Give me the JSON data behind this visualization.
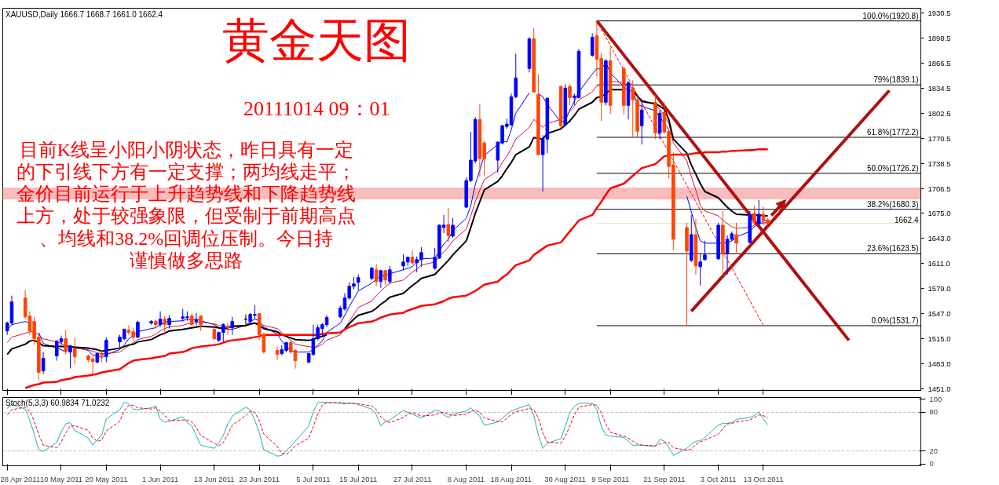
{
  "chart_data": [
    {
      "type": "candlestick",
      "title": "黄金天图",
      "subtitle": "20111014 09：01",
      "annotations": [
        "XAUUSD,Daily  1666.7 1668.7 1661.0 1662.4",
        "目前K线呈小阳小阴状态，昨日具有一定的下引线下方有一定支撑；两均线走平；金价目前运行于上升趋势线和下降趋势线上方，处于较强象限，但受制于前期高点、均线和38.2%回调位压制。今日持谨慎做多思路"
      ],
      "x": [
        "2011-04-28",
        "2011-04-29",
        "2011-05-02",
        "2011-05-03",
        "2011-05-04",
        "2011-05-05",
        "2011-05-06",
        "2011-05-09",
        "2011-05-10",
        "2011-05-11",
        "2011-05-12",
        "2011-05-13",
        "2011-05-16",
        "2011-05-17",
        "2011-05-18",
        "2011-05-19",
        "2011-05-20",
        "2011-05-23",
        "2011-05-24",
        "2011-05-25",
        "2011-05-26",
        "2011-05-27",
        "2011-05-30",
        "2011-05-31",
        "2011-06-01",
        "2011-06-02",
        "2011-06-03",
        "2011-06-06",
        "2011-06-07",
        "2011-06-08",
        "2011-06-09",
        "2011-06-10",
        "2011-06-13",
        "2011-06-14",
        "2011-06-15",
        "2011-06-16",
        "2011-06-17",
        "2011-06-20",
        "2011-06-21",
        "2011-06-22",
        "2011-06-23",
        "2011-06-24",
        "2011-06-27",
        "2011-06-28",
        "2011-06-29",
        "2011-06-30",
        "2011-07-01",
        "2011-07-04",
        "2011-07-05",
        "2011-07-06",
        "2011-07-07",
        "2011-07-08",
        "2011-07-11",
        "2011-07-12",
        "2011-07-13",
        "2011-07-14",
        "2011-07-15",
        "2011-07-18",
        "2011-07-19",
        "2011-07-20",
        "2011-07-21",
        "2011-07-22",
        "2011-07-25",
        "2011-07-26",
        "2011-07-27",
        "2011-07-28",
        "2011-07-29",
        "2011-08-01",
        "2011-08-02",
        "2011-08-03",
        "2011-08-04",
        "2011-08-05",
        "2011-08-08",
        "2011-08-09",
        "2011-08-10",
        "2011-08-11",
        "2011-08-12",
        "2011-08-15",
        "2011-08-16",
        "2011-08-17",
        "2011-08-18",
        "2011-08-19",
        "2011-08-22",
        "2011-08-23",
        "2011-08-24",
        "2011-08-25",
        "2011-08-26",
        "2011-08-29",
        "2011-08-30",
        "2011-08-31",
        "2011-09-01",
        "2011-09-02",
        "2011-09-05",
        "2011-09-06",
        "2011-09-07",
        "2011-09-08",
        "2011-09-09",
        "2011-09-12",
        "2011-09-13",
        "2011-09-14",
        "2011-09-15",
        "2011-09-16",
        "2011-09-19",
        "2011-09-20",
        "2011-09-21",
        "2011-09-22",
        "2011-09-23",
        "2011-09-26",
        "2011-09-27",
        "2011-09-28",
        "2011-09-29",
        "2011-09-30",
        "2011-10-03",
        "2011-10-04",
        "2011-10-05",
        "2011-10-06",
        "2011-10-07",
        "2011-10-10",
        "2011-10-11",
        "2011-10-12",
        "2011-10-13",
        "2011-10-14"
      ],
      "ohlc": [
        [
          1525,
          1537,
          1520,
          1535
        ],
        [
          1535,
          1570,
          1533,
          1562
        ],
        [
          1567,
          1577,
          1540,
          1543
        ],
        [
          1544,
          1550,
          1520,
          1525
        ],
        [
          1537,
          1543,
          1507,
          1515
        ],
        [
          1517,
          1520,
          1462,
          1472
        ],
        [
          1474,
          1498,
          1470,
          1490
        ],
        [
          1493,
          1513,
          1487,
          1512
        ],
        [
          1511,
          1519,
          1507,
          1515
        ],
        [
          1515,
          1526,
          1495,
          1499
        ],
        [
          1498,
          1507,
          1477,
          1506
        ],
        [
          1502,
          1517,
          1482,
          1492
        ],
        [
          1493,
          1495,
          1485,
          1488
        ],
        [
          1489,
          1493,
          1470,
          1486
        ],
        [
          1485,
          1497,
          1484,
          1496
        ],
        [
          1496,
          1500,
          1485,
          1494
        ],
        [
          1492,
          1517,
          1485,
          1513
        ],
        [
          1511,
          1520,
          1503,
          1517
        ],
        [
          1515,
          1528,
          1513,
          1527
        ],
        [
          1526,
          1532,
          1520,
          1523
        ],
        [
          1524,
          1529,
          1513,
          1517
        ],
        [
          1517,
          1538,
          1516,
          1536
        ],
        [
          1535,
          1539,
          1533,
          1537
        ],
        [
          1537,
          1539,
          1530,
          1533
        ],
        [
          1533,
          1550,
          1530,
          1540
        ],
        [
          1540,
          1544,
          1520,
          1533
        ],
        [
          1533,
          1545,
          1528,
          1541
        ],
        [
          1541,
          1553,
          1537,
          1543
        ],
        [
          1542,
          1550,
          1538,
          1543
        ],
        [
          1544,
          1547,
          1532,
          1533
        ],
        [
          1537,
          1548,
          1532,
          1539
        ],
        [
          1544,
          1545,
          1525,
          1533
        ],
        [
          1527,
          1529,
          1513,
          1515
        ],
        [
          1513,
          1524,
          1511,
          1523
        ],
        [
          1523,
          1535,
          1511,
          1533
        ],
        [
          1531,
          1535,
          1520,
          1529
        ],
        [
          1529,
          1543,
          1520,
          1537
        ],
        [
          1540,
          1546,
          1533,
          1540
        ],
        [
          1537,
          1548,
          1535,
          1546
        ],
        [
          1545,
          1558,
          1540,
          1546
        ],
        [
          1547,
          1548,
          1513,
          1520
        ],
        [
          1520,
          1523,
          1496,
          1498
        ],
        [
          1500,
          1505,
          1488,
          1495
        ],
        [
          1496,
          1507,
          1494,
          1501
        ],
        [
          1500,
          1511,
          1498,
          1510
        ],
        [
          1510,
          1513,
          1496,
          1498
        ],
        [
          1500,
          1502,
          1477,
          1487
        ],
        [
          1485,
          1497,
          1484,
          1496
        ],
        [
          1495,
          1533,
          1493,
          1515
        ],
        [
          1515,
          1533,
          1513,
          1529
        ],
        [
          1528,
          1535,
          1518,
          1533
        ],
        [
          1533,
          1545,
          1530,
          1542
        ],
        [
          1543,
          1557,
          1541,
          1554
        ],
        [
          1553,
          1573,
          1551,
          1567
        ],
        [
          1567,
          1587,
          1565,
          1582
        ],
        [
          1582,
          1594,
          1578,
          1585
        ],
        [
          1587,
          1597,
          1577,
          1593
        ],
        [
          1592,
          1607,
          1590,
          1605
        ],
        [
          1603,
          1610,
          1582,
          1588
        ],
        [
          1588,
          1603,
          1580,
          1602
        ],
        [
          1602,
          1603,
          1583,
          1590
        ],
        [
          1588,
          1608,
          1585,
          1603
        ],
        [
          1608,
          1623,
          1603,
          1613
        ],
        [
          1613,
          1620,
          1608,
          1619
        ],
        [
          1619,
          1628,
          1610,
          1612
        ],
        [
          1612,
          1620,
          1600,
          1616
        ],
        [
          1616,
          1632,
          1607,
          1625
        ],
        [
          1605,
          1631,
          1603,
          1619
        ],
        [
          1618,
          1661,
          1617,
          1660
        ],
        [
          1657,
          1673,
          1650,
          1660
        ],
        [
          1661,
          1682,
          1638,
          1647
        ],
        [
          1646,
          1669,
          1644,
          1660
        ],
        [
          1683,
          1721,
          1682,
          1717
        ],
        [
          1717,
          1779,
          1715,
          1743
        ],
        [
          1742,
          1798,
          1739,
          1795
        ],
        [
          1795,
          1815,
          1722,
          1745
        ],
        [
          1765,
          1768,
          1723,
          1745
        ],
        [
          1743,
          1767,
          1727,
          1766
        ],
        [
          1765,
          1788,
          1763,
          1787
        ],
        [
          1786,
          1796,
          1783,
          1789
        ],
        [
          1788,
          1828,
          1787,
          1824
        ],
        [
          1824,
          1879,
          1822,
          1848
        ],
        [
          1860,
          1900,
          1855,
          1898
        ],
        [
          1898,
          1912,
          1830,
          1830
        ],
        [
          1827,
          1853,
          1750,
          1750
        ],
        [
          1750,
          1775,
          1703,
          1770
        ],
        [
          1770,
          1823,
          1752,
          1822
        ],
        [
          1837,
          1839,
          1783,
          1787
        ],
        [
          1788,
          1840,
          1787,
          1835
        ],
        [
          1837,
          1840,
          1813,
          1823
        ],
        [
          1823,
          1828,
          1813,
          1825
        ],
        [
          1823,
          1885,
          1822,
          1882
        ],
        [
          1877,
          1905,
          1875,
          1900
        ],
        [
          1902,
          1920.8,
          1850,
          1872
        ],
        [
          1873,
          1880,
          1793,
          1817
        ],
        [
          1817,
          1872,
          1813,
          1870
        ],
        [
          1870,
          1887,
          1802,
          1813
        ],
        [
          1860,
          1863,
          1801,
          1813
        ],
        [
          1813,
          1844,
          1795,
          1842
        ],
        [
          1835,
          1845,
          1773,
          1820
        ],
        [
          1820,
          1822,
          1773,
          1780
        ],
        [
          1787,
          1820,
          1763,
          1807
        ],
        [
          1817,
          1826,
          1770,
          1778
        ],
        [
          1778,
          1807,
          1770,
          1803
        ],
        [
          1804,
          1817,
          1777,
          1779
        ],
        [
          1780,
          1782,
          1720,
          1735
        ],
        [
          1737,
          1753,
          1628,
          1642
        ],
        [
          1657,
          1663,
          1531.7,
          1627
        ],
        [
          1615,
          1673,
          1613,
          1648
        ],
        [
          1648,
          1668,
          1597,
          1608
        ],
        [
          1607,
          1623,
          1583,
          1613
        ],
        [
          1616,
          1640,
          1615,
          1622
        ],
        [
          1617,
          1663,
          1616,
          1660
        ],
        [
          1660,
          1678,
          1595,
          1623
        ],
        [
          1624,
          1647,
          1597,
          1642
        ],
        [
          1642,
          1652,
          1640,
          1649
        ],
        [
          1648,
          1663,
          1625,
          1637
        ],
        [
          1638,
          1678,
          1637,
          1673
        ],
        [
          1675,
          1685,
          1660,
          1663
        ],
        [
          1662,
          1692,
          1660,
          1674
        ],
        [
          1674,
          1684,
          1660,
          1666
        ],
        [
          1666.7,
          1668.7,
          1661.0,
          1662.4
        ]
      ],
      "colors": [
        "#0000ff",
        "#0000ff",
        "#ff4500",
        "#ff4500",
        "#ff4500",
        "#ff4500",
        "#0000ff",
        "#0000ff",
        "#0000ff",
        "#ff4500",
        "#0000ff",
        "#ff4500",
        "#ff4500",
        "#ff4500",
        "#0000ff",
        "#ff4500",
        "#0000ff",
        "#0000ff",
        "#0000ff",
        "#ff4500",
        "#ff4500",
        "#0000ff",
        "#0000ff",
        "#ff4500",
        "#0000ff",
        "#ff4500",
        "#0000ff",
        "#0000ff",
        "#0000ff",
        "#ff4500",
        "#0000ff",
        "#ff4500",
        "#ff4500",
        "#0000ff",
        "#0000ff",
        "#ff4500",
        "#0000ff",
        "#000000",
        "#0000ff",
        "#0000ff",
        "#ff4500",
        "#ff4500",
        "#ff4500",
        "#0000ff",
        "#0000ff",
        "#ff4500",
        "#ff4500",
        "#0000ff",
        "#0000ff",
        "#0000ff",
        "#0000ff",
        "#0000ff",
        "#0000ff",
        "#0000ff",
        "#0000ff",
        "#0000ff",
        "#0000ff",
        "#0000ff",
        "#ff4500",
        "#0000ff",
        "#ff4500",
        "#0000ff",
        "#0000ff",
        "#0000ff",
        "#ff4500",
        "#0000ff",
        "#0000ff",
        "#0000ff",
        "#0000ff",
        "#0000ff",
        "#ff4500",
        "#0000ff",
        "#0000ff",
        "#0000ff",
        "#0000ff",
        "#ff4500",
        "#ff4500",
        "#0000ff",
        "#0000ff",
        "#0000ff",
        "#0000ff",
        "#0000ff",
        "#0000ff",
        "#ff4500",
        "#ff4500",
        "#0000ff",
        "#0000ff",
        "#ff4500",
        "#0000ff",
        "#ff4500",
        "#0000ff",
        "#0000ff",
        "#0000ff",
        "#ff4500",
        "#ff4500",
        "#0000ff",
        "#ff4500",
        "#ff4500",
        "#0000ff",
        "#ff4500",
        "#ff4500",
        "#0000ff",
        "#ff4500",
        "#0000ff",
        "#ff4500",
        "#ff4500",
        "#ff4500",
        "#ff4500",
        "#0000ff",
        "#ff4500",
        "#0000ff",
        "#0000ff",
        "#0000ff",
        "#ff4500",
        "#0000ff",
        "#0000ff",
        "#ff4500",
        "#0000ff",
        "#ff4500",
        "#0000ff",
        "#ff4500",
        "#ff4500"
      ],
      "series": [
        {
          "type": "line",
          "color": "#0000ff",
          "values": [
            1527,
            1533,
            1537,
            1535,
            null,
            1523,
            1509,
            1503,
            1501,
            1498,
            1504,
            1505,
            1500,
            1494,
            1494,
            1491,
            1495,
            1501,
            1507,
            1515,
            1519,
            1524,
            1528,
            1529,
            1533,
            1536,
            1537,
            1538,
            1540,
            1539,
            1540,
            1538,
            1533,
            1529,
            1529,
            1527,
            1527,
            1532,
            1537,
            1540,
            1538,
            1530,
            1521,
            1512,
            1505,
            1500,
            1498,
            1498,
            1501,
            1507,
            1512,
            1523,
            1535,
            1545,
            1556,
            1566,
            1576,
            1586,
            1591,
            1595,
            1596,
            1598,
            1603,
            1605,
            1607,
            1613,
            1617,
            1618,
            1627,
            1636,
            1642,
            1653,
            1669,
            1685,
            1712,
            1730,
            1749,
            1763,
            1768,
            1766,
            1782,
            1803,
            1829,
            null,
            1828,
            1824,
            1814,
            1792,
            1793,
            1807,
            1818,
            1830,
            1853,
            1860,
            1859,
            1868,
            1854,
            1837,
            1831,
            1832,
            1814,
            1812,
            1806,
            1798,
            1790,
            1782,
            null,
            1697,
            1677,
            1657,
            1640,
            1637,
            1637,
            1637,
            1638,
            1640,
            1645,
            1652,
            1658,
            1661,
            1663,
            1663
          ]
        },
        {
          "type": "line",
          "color": "#dc143c",
          "values": [
            1510,
            1517,
            1522,
            1524,
            1524,
            1520,
            1515,
            1511,
            1509,
            1506,
            1505,
            1503,
            1501,
            1499,
            1497,
            1496,
            1496,
            1498,
            1502,
            1506,
            1510,
            1514,
            1518,
            1521,
            1525,
            1528,
            1530,
            1532,
            1534,
            1535,
            1536,
            1536,
            1534,
            1532,
            1531,
            1530,
            1530,
            1531,
            1533,
            1535,
            1535,
            1532,
            1528,
            1523,
            1518,
            1513,
            1508,
            1505,
            1504,
            1505,
            1508,
            1513,
            1520,
            1528,
            1537,
            1546,
            1555,
            1563,
            1570,
            1576,
            1581,
            1586,
            1590,
            1595,
            1600,
            1604,
            1609,
            1613,
            1620,
            1626,
            1632,
            1640,
            1655,
            1672,
            1690,
            1705,
            1718,
            1730,
            1740,
            1748,
            1758,
            1770,
            1785,
            1795,
            1790,
            1785,
            1790,
            1795,
            1800,
            1805,
            1812,
            1820,
            1830,
            1838,
            1840,
            1843,
            1844,
            1842,
            1838,
            1835,
            1826,
            1820,
            1814,
            1808,
            1800,
            1790,
            1765,
            1742,
            1722,
            1705,
            1685,
            1678,
            1672,
            1666,
            1662,
            1658,
            1656,
            1657,
            1660,
            1663,
            1665,
            1667
          ]
        },
        {
          "type": "line",
          "color": "#000000",
          "values": [
            1495,
            1502,
            1508,
            1512,
            1513,
            1510,
            1506,
            1505,
            1505,
            1505,
            1505,
            1504,
            1503,
            1502,
            1501,
            1499,
            1500,
            1503,
            1505,
            1507,
            1508,
            1511,
            1514,
            1517,
            1520,
            1522,
            1525,
            1527,
            1528,
            1529,
            1530,
            1531,
            1530,
            1529,
            1528,
            1529,
            1531,
            1532,
            1534,
            1535,
            1532,
            1528,
            1524,
            1520,
            1518,
            1516,
            1514,
            1513,
            1514,
            1517,
            1518,
            1520,
            null,
            1528,
            1534,
            1540,
            1545,
            1550,
            1554,
            1559,
            1563,
            1568,
            1573,
            1578,
            1583,
            1587,
            1592,
            1597,
            1603,
            1609,
            1615,
            1622,
            1640,
            1657,
            1675,
            1690,
            1705,
            1716,
            1723,
            1732,
            1740,
            1750,
            1760,
            1772,
            1771,
            1770,
            1777,
            1783,
            1788,
            1793,
            1800,
            1808,
            1817,
            1823,
            1824,
            1828,
            1833,
            1833,
            null,
            1831,
            1825,
            1818,
            1815,
            1812,
            1808,
            1795,
            1770,
            1752,
            1737,
            1725,
            1713,
            1703,
            1695,
            1689,
            1683,
            1678,
            1674,
            1673,
            1673,
            1673,
            1672,
            1672
          ]
        },
        {
          "type": "line",
          "color": "#ff0000",
          "values": [
            null,
            null,
            1452,
            1454,
            1456,
            1457,
            1459,
            1460,
            1462,
            1463,
            1464,
            1466,
            1468,
            1469,
            1470,
            1472,
            1473,
            1476,
            1480,
            1484,
            1487,
            1488,
            1490,
            1491,
            1492,
            1493,
            1496,
            1498,
            1500,
            1503,
            1504,
            1505,
            1507,
            1508,
            1510,
            1512,
            1513,
            1515,
            1516,
            1517,
            1518,
            1520,
            1520,
            1520,
            1520,
            1520,
            1520,
            1520,
            1520,
            1520,
            1521,
            1522,
            1523,
            1527,
            1530,
            1532,
            1535,
            1537,
            1539,
            1542,
            1544,
            1546,
            1548,
            1551,
            1553,
            1555,
            1557,
            1559,
            1561,
            1563,
            1566,
            1568,
            1570,
            1573,
            1576,
            1580,
            1584,
            1588,
            1593,
            1597,
            1603,
            1609,
            1615,
            1622,
            1626,
            1630,
            1634,
            1638,
            1645,
            1652,
            1659,
            1666,
            1673,
            1682,
            1690,
            1699,
            1707,
            1713,
            1718,
            1723,
            1728,
            1733,
            1738,
            1743,
            1748,
            1749,
            1750,
            1750,
            1751,
            1752,
            1752,
            1753,
            1753,
            1754,
            1754,
            1755,
            1755,
            1756,
            1756,
            1757,
            1757,
            1757
          ]
        },
        {
          "type": "line",
          "color": "#b01010",
          "x": [
            "2011-09-06",
            "2011-11-01"
          ],
          "values": [
            1921,
            1513
          ]
        },
        {
          "type": "line",
          "color": "#b01010",
          "x": [
            "2011-09-27",
            "2011-11-10"
          ],
          "values": [
            1550,
            1832
          ]
        },
        {
          "type": "line",
          "color": "#ff0000",
          "line_style": "dashed",
          "x": [
            "2011-09-06",
            "2011-10-13"
          ],
          "values": [
            1921,
            1532
          ]
        }
      ],
      "ref_lines": [
        {
          "axis": "y",
          "value": 1920.8,
          "label": "100.0%(1920.8)",
          "color": "#000000"
        },
        {
          "axis": "y",
          "value": 1839.1,
          "label": "79%(1839.1)",
          "color": "#000000"
        },
        {
          "axis": "y",
          "value": 1772.2,
          "label": "61.8%(1772.2)",
          "color": "#000000"
        },
        {
          "axis": "y",
          "value": 1726.2,
          "label": "50.0%(1726.2)",
          "color": "#000000"
        },
        {
          "axis": "y",
          "value": 1680.3,
          "label": "38.2%(1680.3)",
          "color": "#000000"
        },
        {
          "axis": "y",
          "value": 1623.5,
          "label": "23.6%(1623.5)",
          "color": "#000000"
        },
        {
          "axis": "y",
          "value": 1531.7,
          "label": "0.0%(1531.7)",
          "color": "#000000"
        },
        {
          "axis": "y",
          "value": 1662.4,
          "label": "1662.4",
          "color": "#e6e6c0"
        }
      ],
      "bands": [
        {
          "axis": "y",
          "from": 1693,
          "to": 1708,
          "color": "#f8bcbc"
        }
      ],
      "ylim": [
        1449,
        1937
      ],
      "yticks": [
        1930.5,
        1898.5,
        1866.5,
        1834.5,
        1802.5,
        1770.5,
        1738.5,
        1706.5,
        {
          "value": 1675,
          "label": "1675.0"
        },
        {
          "value": 1643,
          "label": "1643.0"
        },
        {
          "value": 1611,
          "label": "1611.0"
        },
        {
          "value": 1579,
          "label": "1579.0"
        },
        {
          "value": 1547,
          "label": "1547.0"
        },
        {
          "value": 1515,
          "label": "1515.0"
        },
        {
          "value": 1483,
          "label": "1483.0"
        },
        {
          "value": 1451,
          "label": "1451.0"
        }
      ],
      "xlim": [
        "2011-04-27",
        "2011-11-17"
      ],
      "xticks": [
        {
          "value": "2011-04-28",
          "label": null
        },
        {
          "value": "2011-05-10",
          "label": null
        },
        {
          "value": "2011-05-20",
          "label": null
        },
        {
          "value": "2011-06-01",
          "label": null
        },
        {
          "value": "2011-06-13",
          "label": null
        },
        {
          "value": "2011-06-23",
          "label": null
        },
        {
          "value": "2011-07-05",
          "label": null
        },
        {
          "value": "2011-07-15",
          "label": null
        },
        {
          "value": "2011-07-27",
          "label": null
        },
        {
          "value": "2011-08-08",
          "label": null
        },
        {
          "value": "2011-08-18",
          "label": null
        },
        {
          "value": "2011-08-30",
          "label": null
        },
        {
          "value": "2011-09-09",
          "label": null
        },
        {
          "value": "2011-09-21",
          "label": null
        },
        {
          "value": "2011-10-03",
          "label": null
        },
        {
          "value": "2011-10-13",
          "label": null
        }
      ],
      "tick_labels": "y",
      "grid": false
    },
    {
      "type": "line",
      "title": "Stoch(5,3,3) 60.9834 71.0232",
      "x": [
        "2011-04-28",
        "2011-04-29",
        "2011-05-02",
        "2011-05-03",
        "2011-05-04",
        "2011-05-05",
        "2011-05-06",
        "2011-05-09",
        "2011-05-10",
        "2011-05-11",
        "2011-05-12",
        "2011-05-13",
        "2011-05-16",
        "2011-05-17",
        "2011-05-18",
        "2011-05-19",
        "2011-05-20",
        "2011-05-23",
        "2011-05-24",
        "2011-05-25",
        "2011-05-26",
        "2011-05-27",
        "2011-05-30",
        "2011-05-31",
        "2011-06-01",
        "2011-06-02",
        "2011-06-03",
        "2011-06-06",
        "2011-06-07",
        "2011-06-08",
        "2011-06-09",
        "2011-06-10",
        "2011-06-13",
        "2011-06-14",
        "2011-06-15",
        "2011-06-16",
        "2011-06-17",
        "2011-06-20",
        "2011-06-21",
        "2011-06-22",
        "2011-06-23",
        "2011-06-24",
        "2011-06-27",
        "2011-06-28",
        "2011-06-29",
        "2011-06-30",
        "2011-07-01",
        "2011-07-04",
        "2011-07-05",
        "2011-07-06",
        "2011-07-07",
        "2011-07-08",
        "2011-07-11",
        "2011-07-12",
        "2011-07-13",
        "2011-07-14",
        "2011-07-15",
        "2011-07-18",
        "2011-07-19",
        "2011-07-20",
        "2011-07-21",
        "2011-07-22",
        "2011-07-25",
        "2011-07-26",
        "2011-07-27",
        "2011-07-28",
        "2011-07-29",
        "2011-08-01",
        "2011-08-02",
        "2011-08-03",
        "2011-08-04",
        "2011-08-05",
        "2011-08-08",
        "2011-08-09",
        "2011-08-10",
        "2011-08-11",
        "2011-08-12",
        "2011-08-15",
        "2011-08-16",
        "2011-08-17",
        "2011-08-18",
        "2011-08-19",
        "2011-08-22",
        "2011-08-23",
        "2011-08-24",
        "2011-08-25",
        "2011-08-26",
        "2011-08-29",
        "2011-08-30",
        "2011-08-31",
        "2011-09-01",
        "2011-09-02",
        "2011-09-05",
        "2011-09-06",
        "2011-09-07",
        "2011-09-08",
        "2011-09-09",
        "2011-09-12",
        "2011-09-13",
        "2011-09-14",
        "2011-09-15",
        "2011-09-16",
        "2011-09-19",
        "2011-09-20",
        "2011-09-21",
        "2011-09-22",
        "2011-09-23",
        "2011-09-26",
        "2011-09-27",
        "2011-09-28",
        "2011-09-29",
        "2011-09-30",
        "2011-10-03",
        "2011-10-04",
        "2011-10-05",
        "2011-10-06",
        "2011-10-07",
        "2011-10-10",
        "2011-10-11",
        "2011-10-12",
        "2011-10-13",
        "2011-10-14"
      ],
      "series": [
        {
          "color": "#20b2aa",
          "values": [
            86,
            92,
            85,
            68,
            46,
            22,
            19,
            33,
            50,
            62,
            64,
            52,
            40,
            29,
            37,
            45,
            70,
            84,
            96,
            93,
            85,
            84,
            87,
            90,
            69,
            65,
            66,
            73,
            64,
            59,
            44,
            29,
            24,
            32,
            44,
            62,
            74,
            88,
            84,
            68,
            48,
            22,
            12,
            13,
            21,
            27,
            35,
            59,
            81,
            95,
            96,
            95,
            94,
            93,
            94,
            94,
            92,
            85,
            76,
            59,
            65,
            68,
            83,
            80,
            77,
            74,
            71,
            83,
            82,
            76,
            72,
            77,
            82,
            87,
            80,
            74,
            60,
            65,
            71,
            77,
            82,
            85,
            92,
            75,
            45,
            24,
            32,
            39,
            58,
            80,
            89,
            94,
            94,
            84,
            58,
            45,
            43,
            41,
            35,
            29,
            29,
            29,
            27,
            38,
            35,
            26,
            13,
            24,
            31,
            35,
            36,
            41,
            60,
            63,
            63,
            64,
            69,
            72,
            75,
            81,
            70,
            61
          ]
        },
        {
          "color": "#ff0000",
          "line_style": "dashed",
          "values": [
            76,
            84,
            88,
            82,
            66,
            45,
            29,
            25,
            34,
            48,
            59,
            59,
            52,
            40,
            35,
            37,
            51,
            66,
            83,
            91,
            91,
            87,
            85,
            87,
            82,
            75,
            67,
            68,
            68,
            65,
            56,
            44,
            32,
            28,
            33,
            46,
            60,
            75,
            82,
            80,
            67,
            46,
            27,
            16,
            15,
            20,
            28,
            40,
            58,
            78,
            91,
            95,
            95,
            94,
            94,
            94,
            93,
            90,
            84,
            73,
            67,
            64,
            72,
            77,
            80,
            77,
            74,
            76,
            79,
            80,
            77,
            75,
            77,
            82,
            83,
            80,
            71,
            66,
            65,
            71,
            77,
            81,
            86,
            84,
            71,
            48,
            34,
            32,
            43,
            59,
            76,
            88,
            92,
            91,
            79,
            62,
            49,
            43,
            40,
            35,
            31,
            29,
            28,
            31,
            33,
            33,
            25,
            21,
            23,
            30,
            34,
            37,
            46,
            55,
            62,
            63,
            65,
            68,
            72,
            76,
            75,
            71
          ]
        }
      ],
      "ref_lines": [
        {
          "axis": "y",
          "value": 80,
          "color": "#c0c0c0",
          "line_style": "dashed"
        },
        {
          "axis": "y",
          "value": 20,
          "color": "#c0c0c0",
          "line_style": "dashed"
        }
      ],
      "ylim": [
        -3,
        103
      ],
      "yticks": [
        0,
        20,
        80,
        100
      ],
      "xlim": [
        "2011-04-27",
        "2011-11-17"
      ],
      "xticks": [
        {
          "value": "2011-04-28",
          "label": "28 Apr 2011"
        },
        {
          "value": "2011-05-10",
          "label": "10 May 2011"
        },
        {
          "value": "2011-05-20",
          "label": "20 May 2011"
        },
        {
          "value": "2011-06-01",
          "label": "1 Jun 2011"
        },
        {
          "value": "2011-06-13",
          "label": "13 Jun 2011"
        },
        {
          "value": "2011-06-23",
          "label": "23 Jun 2011"
        },
        {
          "value": "2011-07-05",
          "label": "5 Jul 2011"
        },
        {
          "value": "2011-07-15",
          "label": "15 Jul 2011"
        },
        {
          "value": "2011-07-27",
          "label": "27 Jul 2011"
        },
        {
          "value": "2011-08-08",
          "label": "8 Aug 2011"
        },
        {
          "value": "2011-08-18",
          "label": "18 Aug 2011"
        },
        {
          "value": "2011-08-30",
          "label": "30 Aug 2011"
        },
        {
          "value": "2011-09-09",
          "label": "9 Sep 2011"
        },
        {
          "value": "2011-09-21",
          "label": "21 Sep 2011"
        },
        {
          "value": "2011-10-03",
          "label": "3 Oct 2011"
        },
        {
          "value": "2011-10-13",
          "label": "13 Oct 2011"
        }
      ],
      "grid": false
    }
  ]
}
